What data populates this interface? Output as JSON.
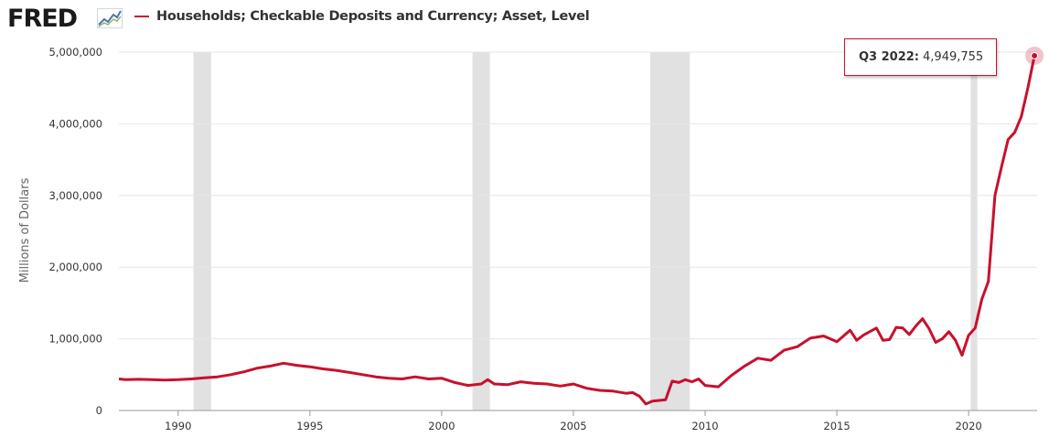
{
  "header": {
    "logo_text": "FRED",
    "logo_icon": "trend-line-icon",
    "series_title": "Households; Checkable Deposits and Currency; Asset, Level"
  },
  "colors": {
    "series": "#c8102e",
    "recession": "#e1e1e1",
    "grid": "#e6e6e6"
  },
  "tooltip": {
    "date": "Q3 2022:",
    "value": "4,949,755"
  },
  "chart_data": {
    "type": "line",
    "ylabel": "Millions of Dollars",
    "xlim": [
      1987.75,
      2022.6
    ],
    "ylim": [
      0,
      5000000
    ],
    "x_ticks": [
      1990,
      1995,
      2000,
      2005,
      2010,
      2015,
      2020
    ],
    "x_tick_labels": [
      "1990",
      "1995",
      "2000",
      "2005",
      "2010",
      "2015",
      "2020"
    ],
    "y_ticks": [
      0,
      1000000,
      2000000,
      3000000,
      4000000,
      5000000
    ],
    "y_tick_labels": [
      "0",
      "1,000,000",
      "2,000,000",
      "3,000,000",
      "4,000,000",
      "5,000,000"
    ],
    "recessions": [
      [
        1990.58,
        1991.25
      ],
      [
        2001.17,
        2001.83
      ],
      [
        2007.92,
        2009.42
      ],
      [
        2020.08,
        2020.33
      ]
    ],
    "grid": true,
    "series": [
      {
        "name": "Households; Checkable Deposits and Currency; Asset, Level",
        "points": [
          [
            1987.75,
            440000
          ],
          [
            1988.0,
            430000
          ],
          [
            1988.5,
            435000
          ],
          [
            1989.0,
            430000
          ],
          [
            1989.5,
            425000
          ],
          [
            1990.0,
            430000
          ],
          [
            1990.5,
            440000
          ],
          [
            1991.0,
            455000
          ],
          [
            1991.5,
            470000
          ],
          [
            1992.0,
            500000
          ],
          [
            1992.5,
            540000
          ],
          [
            1993.0,
            590000
          ],
          [
            1993.5,
            620000
          ],
          [
            1994.0,
            660000
          ],
          [
            1994.5,
            630000
          ],
          [
            1995.0,
            610000
          ],
          [
            1995.5,
            580000
          ],
          [
            1996.0,
            560000
          ],
          [
            1996.5,
            530000
          ],
          [
            1997.0,
            500000
          ],
          [
            1997.5,
            470000
          ],
          [
            1998.0,
            450000
          ],
          [
            1998.5,
            440000
          ],
          [
            1999.0,
            470000
          ],
          [
            1999.5,
            440000
          ],
          [
            2000.0,
            450000
          ],
          [
            2000.5,
            390000
          ],
          [
            2001.0,
            350000
          ],
          [
            2001.5,
            370000
          ],
          [
            2001.75,
            430000
          ],
          [
            2002.0,
            370000
          ],
          [
            2002.5,
            360000
          ],
          [
            2003.0,
            400000
          ],
          [
            2003.5,
            380000
          ],
          [
            2004.0,
            370000
          ],
          [
            2004.5,
            340000
          ],
          [
            2005.0,
            370000
          ],
          [
            2005.5,
            310000
          ],
          [
            2006.0,
            280000
          ],
          [
            2006.5,
            270000
          ],
          [
            2007.0,
            240000
          ],
          [
            2007.25,
            250000
          ],
          [
            2007.5,
            200000
          ],
          [
            2007.75,
            90000
          ],
          [
            2008.0,
            130000
          ],
          [
            2008.25,
            140000
          ],
          [
            2008.5,
            150000
          ],
          [
            2008.75,
            410000
          ],
          [
            2009.0,
            390000
          ],
          [
            2009.25,
            430000
          ],
          [
            2009.5,
            400000
          ],
          [
            2009.75,
            440000
          ],
          [
            2010.0,
            350000
          ],
          [
            2010.5,
            330000
          ],
          [
            2011.0,
            490000
          ],
          [
            2011.5,
            620000
          ],
          [
            2012.0,
            730000
          ],
          [
            2012.5,
            700000
          ],
          [
            2013.0,
            840000
          ],
          [
            2013.5,
            890000
          ],
          [
            2014.0,
            1010000
          ],
          [
            2014.5,
            1040000
          ],
          [
            2015.0,
            960000
          ],
          [
            2015.5,
            1120000
          ],
          [
            2015.75,
            980000
          ],
          [
            2016.0,
            1050000
          ],
          [
            2016.5,
            1150000
          ],
          [
            2016.75,
            980000
          ],
          [
            2017.0,
            990000
          ],
          [
            2017.25,
            1160000
          ],
          [
            2017.5,
            1150000
          ],
          [
            2017.75,
            1060000
          ],
          [
            2018.0,
            1180000
          ],
          [
            2018.25,
            1280000
          ],
          [
            2018.5,
            1140000
          ],
          [
            2018.75,
            950000
          ],
          [
            2019.0,
            1000000
          ],
          [
            2019.25,
            1100000
          ],
          [
            2019.5,
            980000
          ],
          [
            2019.75,
            770000
          ],
          [
            2020.0,
            1050000
          ],
          [
            2020.25,
            1150000
          ],
          [
            2020.5,
            1550000
          ],
          [
            2020.75,
            1800000
          ],
          [
            2021.0,
            3000000
          ],
          [
            2021.25,
            3400000
          ],
          [
            2021.5,
            3780000
          ],
          [
            2021.75,
            3880000
          ],
          [
            2022.0,
            4100000
          ],
          [
            2022.25,
            4500000
          ],
          [
            2022.5,
            4949755
          ]
        ]
      }
    ]
  }
}
